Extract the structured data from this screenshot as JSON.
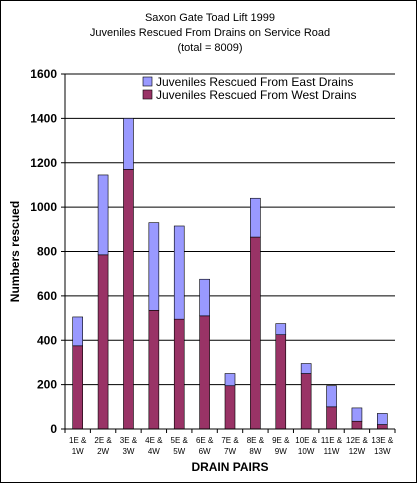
{
  "chart_data": {
    "type": "bar",
    "stacked": true,
    "title": [
      "Saxon Gate Toad Lift 1999",
      "Juveniles Rescued From Drains on Service Road",
      "(total = 8009)"
    ],
    "xlabel": "DRAIN PAIRS",
    "ylabel": "Numbers rescued",
    "ylim": [
      0,
      1600
    ],
    "yticks": [
      0,
      200,
      400,
      600,
      800,
      1000,
      1200,
      1400,
      1600
    ],
    "grid": true,
    "legend_position": "top-right",
    "categories": [
      [
        "1E &",
        "1W"
      ],
      [
        "2E &",
        "2W"
      ],
      [
        "3E &",
        "3W"
      ],
      [
        "4E &",
        "4W"
      ],
      [
        "5E &",
        "5W"
      ],
      [
        "6E &",
        "6W"
      ],
      [
        "7E &",
        "7W"
      ],
      [
        "8E &",
        "8W"
      ],
      [
        "9E &",
        "9W"
      ],
      [
        "10E &",
        "10W"
      ],
      [
        "11E &",
        "11W"
      ],
      [
        "12E &",
        "12W"
      ],
      [
        "13E &",
        "13W"
      ]
    ],
    "series": [
      {
        "name": "Juveniles Rescued From West Drains",
        "color": "#993366",
        "values": [
          375,
          785,
          1170,
          535,
          495,
          510,
          195,
          865,
          425,
          250,
          100,
          35,
          20
        ]
      },
      {
        "name": "Juveniles Rescued From East Drains",
        "color": "#9999ff",
        "values": [
          130,
          360,
          230,
          395,
          420,
          165,
          55,
          175,
          50,
          45,
          95,
          60,
          50
        ]
      }
    ],
    "legend_order": [
      1,
      0
    ]
  }
}
